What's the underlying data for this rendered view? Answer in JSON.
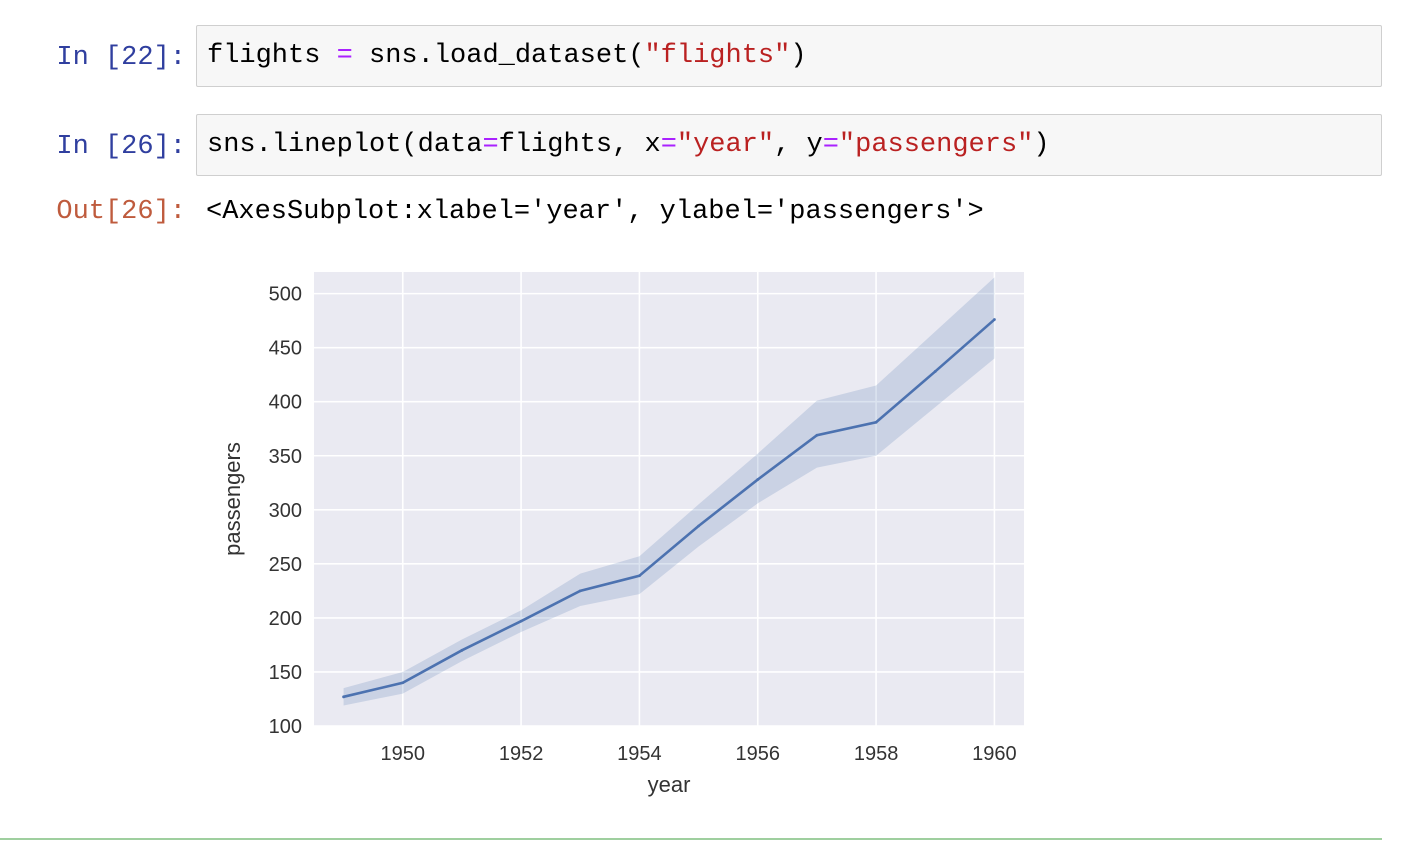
{
  "cells": [
    {
      "prompt": "In [22]:",
      "code": [
        {
          "t": "flights ",
          "k": "plain"
        },
        {
          "t": "=",
          "k": "op"
        },
        {
          "t": " sns.load_dataset(",
          "k": "plain"
        },
        {
          "t": "\"flights\"",
          "k": "str"
        },
        {
          "t": ")",
          "k": "plain"
        }
      ]
    },
    {
      "prompt": "In [26]:",
      "code": [
        {
          "t": "sns.lineplot(data",
          "k": "plain"
        },
        {
          "t": "=",
          "k": "op"
        },
        {
          "t": "flights, x",
          "k": "plain"
        },
        {
          "t": "=",
          "k": "op"
        },
        {
          "t": "\"year\"",
          "k": "str"
        },
        {
          "t": ", y",
          "k": "plain"
        },
        {
          "t": "=",
          "k": "op"
        },
        {
          "t": "\"passengers\"",
          "k": "str"
        },
        {
          "t": ")",
          "k": "plain"
        }
      ]
    }
  ],
  "output": {
    "prompt": "Out[26]:",
    "text": "<AxesSubplot:xlabel='year', ylabel='passengers'>"
  },
  "colors": {
    "line": "#4c72b0",
    "band": "#4c72b0",
    "plot_bg": "#eaeaf2",
    "grid": "#ffffff",
    "prompt_in": "#303f9f",
    "prompt_out": "#bf5b3d"
  },
  "chart_data": {
    "type": "line",
    "xlabel": "year",
    "ylabel": "passengers",
    "xlim": [
      1948.5,
      1960.5
    ],
    "ylim": [
      100,
      520
    ],
    "xticks": [
      1950,
      1952,
      1954,
      1956,
      1958,
      1960
    ],
    "yticks": [
      100,
      150,
      200,
      250,
      300,
      350,
      400,
      450,
      500
    ],
    "grid": true,
    "series": [
      {
        "x": [
          1949,
          1950,
          1951,
          1952,
          1953,
          1954,
          1955,
          1956,
          1957,
          1958,
          1959,
          1960
        ],
        "y": [
          127,
          140,
          170,
          197,
          225,
          239,
          285,
          328,
          369,
          381,
          428,
          476
        ],
        "ci_low": [
          119,
          130,
          160,
          187,
          211,
          222,
          266,
          306,
          339,
          350,
          395,
          440
        ],
        "ci_high": [
          135,
          150,
          180,
          207,
          241,
          257,
          305,
          352,
          401,
          415,
          465,
          515
        ]
      }
    ]
  }
}
